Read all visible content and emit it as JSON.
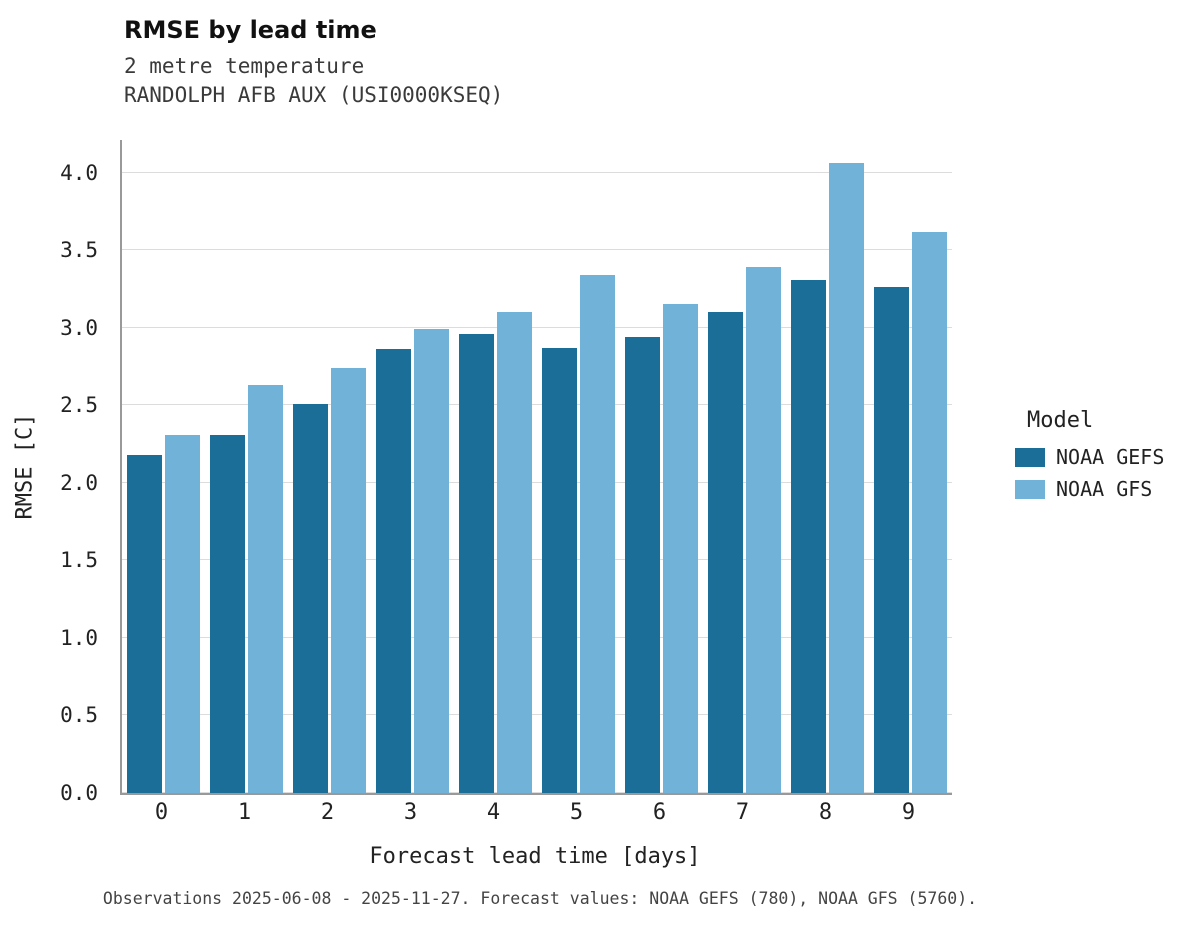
{
  "title": "RMSE by lead time",
  "subtitle1": "2 metre temperature",
  "subtitle2": "RANDOLPH AFB AUX (USI0000KSEQ)",
  "caption": "Observations 2025-06-08 - 2025-11-27. Forecast values: NOAA GEFS (780), NOAA GFS (5760).",
  "chart_data": {
    "type": "bar",
    "title": "RMSE by lead time",
    "subtitle": "2 metre temperature — RANDOLPH AFB AUX (USI0000KSEQ)",
    "xlabel": "Forecast lead time [days]",
    "ylabel": "RMSE [C]",
    "legend_title": "Model",
    "legend_position": "right",
    "grid": "horizontal",
    "ylim": [
      0,
      4.21
    ],
    "yticks": [
      0.0,
      0.5,
      1.0,
      1.5,
      2.0,
      2.5,
      3.0,
      3.5,
      4.0
    ],
    "categories": [
      "0",
      "1",
      "2",
      "3",
      "4",
      "5",
      "6",
      "7",
      "8",
      "9"
    ],
    "series": [
      {
        "name": "NOAA GEFS",
        "color": "#1b6e98",
        "values": [
          2.18,
          2.31,
          2.51,
          2.86,
          2.96,
          2.87,
          2.94,
          3.1,
          3.31,
          3.26
        ]
      },
      {
        "name": "NOAA GFS",
        "color": "#70b2d8",
        "values": [
          2.31,
          2.63,
          2.74,
          2.99,
          3.1,
          3.34,
          3.15,
          3.39,
          4.06,
          3.62
        ]
      }
    ]
  }
}
